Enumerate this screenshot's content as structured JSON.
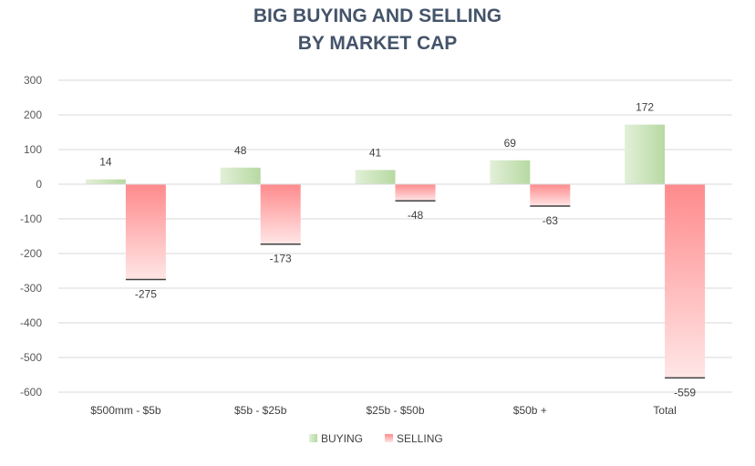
{
  "chart_data": {
    "type": "bar",
    "title_lines": [
      "BIG BUYING AND SELLING",
      "BY MARKET CAP"
    ],
    "categories": [
      "$500mm - $5b",
      "$5b - $25b",
      "$25b - $50b",
      "$50b +",
      "Total"
    ],
    "series": [
      {
        "name": "BUYING",
        "values": [
          14,
          48,
          41,
          69,
          172
        ],
        "color": "#b9dba4"
      },
      {
        "name": "SELLING",
        "values": [
          -275,
          -173,
          -48,
          -63,
          -559
        ],
        "color": "#ff7c80"
      }
    ],
    "ylim": [
      -600,
      300
    ],
    "yticks": [
      300,
      200,
      100,
      0,
      -100,
      -200,
      -300,
      -400,
      -500,
      -600
    ],
    "grid": true,
    "legend_position": "bottom"
  }
}
